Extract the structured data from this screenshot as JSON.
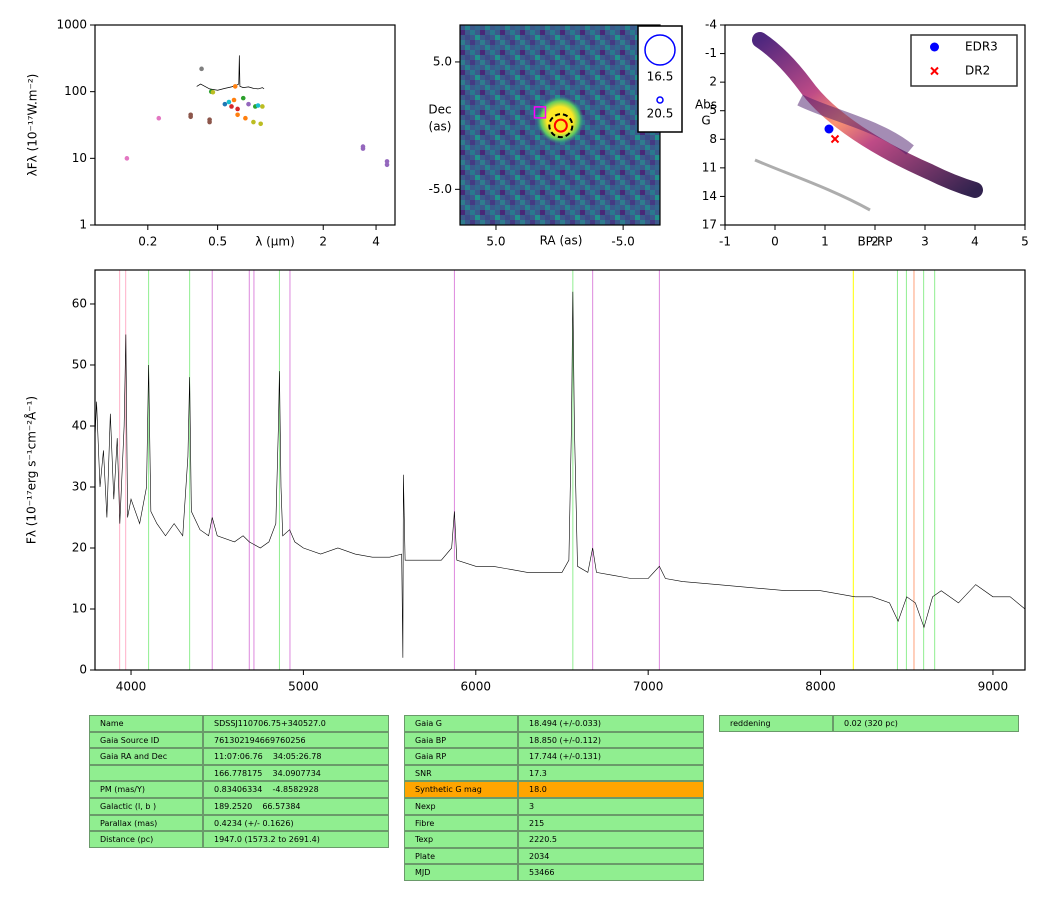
{
  "chart_data": [
    {
      "type": "scatter",
      "y_label": "λFλ (10⁻¹⁷W.m⁻²)",
      "x_label": "λ (μm)",
      "xscale": "log",
      "yscale": "log",
      "xlim": [
        0.1,
        5.13
      ],
      "ylim": [
        1,
        1000
      ],
      "xticks": [
        0.2,
        0.5,
        2,
        4
      ],
      "yticks": [
        1,
        10,
        100,
        1000
      ],
      "x": [
        0.152,
        0.231,
        0.351,
        0.351,
        0.405,
        0.45,
        0.45,
        0.46,
        0.47,
        0.55,
        0.58,
        0.6,
        0.62,
        0.63,
        0.65,
        0.65,
        0.7,
        0.72,
        0.75,
        0.8,
        0.82,
        0.85,
        0.88,
        0.9,
        3.37,
        3.37,
        4.62,
        4.62
      ],
      "values": [
        10,
        40,
        45,
        42,
        220,
        38,
        35,
        100,
        98,
        65,
        70,
        60,
        75,
        120,
        45,
        55,
        80,
        40,
        65,
        35,
        60,
        62,
        33,
        60,
        15,
        14,
        9,
        8
      ],
      "colors": [
        "#e377c2",
        "#e377c2",
        "#8c564b",
        "#8c564b",
        "#7f7f7f",
        "#8c564b",
        "#8c564b",
        "#2ca02c",
        "#bcbd22",
        "#1f77b4",
        "#17becf",
        "#d62728",
        "#ff7f0e",
        "#ff7f0e",
        "#ff7f0e",
        "#d62728",
        "#2ca02c",
        "#ff7f0e",
        "#9467bd",
        "#bcbd22",
        "#2ca02c",
        "#17becf",
        "#bcbd22",
        "#bcbd22",
        "#9467bd",
        "#9467bd",
        "#9467bd",
        "#9467bd"
      ],
      "spectrum": {
        "color": "#000000",
        "x": [
          0.38,
          0.4,
          0.45,
          0.5,
          0.55,
          0.6,
          0.64,
          0.66,
          0.665,
          0.67,
          0.7,
          0.75,
          0.8,
          0.85,
          0.9,
          0.92
        ],
        "values": [
          120,
          130,
          110,
          105,
          112,
          118,
          125,
          130,
          350,
          120,
          115,
          118,
          112,
          110,
          115,
          110
        ]
      }
    },
    {
      "type": "image",
      "x_label": "RA (as)",
      "y_label": [
        "Dec",
        "(as)"
      ],
      "xlim": [
        7.83,
        -7.9
      ],
      "ylim": [
        -7.8,
        7.9
      ],
      "xticks": [
        {
          "value": 5,
          "label": "5.0"
        },
        {
          "value": -5,
          "label": "-5.0"
        }
      ],
      "yticks": [
        {
          "value": 5,
          "label": "5.0"
        },
        {
          "value": -5,
          "label": "-5.0"
        }
      ],
      "markers": [
        {
          "shape": "square",
          "color": "#ff00ff",
          "x": 1.54,
          "y": 1.0
        },
        {
          "shape": "dashed-circle",
          "color": "#000000",
          "x": -0.1,
          "y": 0.0
        },
        {
          "shape": "circle",
          "color": "#ff0000",
          "x": -0.1,
          "y": 0.0
        }
      ],
      "legend_sizes": [
        16.5,
        20.5
      ],
      "legend_color": "#0000ff",
      "legend": "upper right outside"
    },
    {
      "type": "scatter",
      "x_label": "BP-RP",
      "y_label": [
        "Abs",
        "G"
      ],
      "xlim": [
        -1,
        5
      ],
      "ylim": [
        -4,
        17
      ],
      "y_inverted": true,
      "xticks": [
        -1,
        0,
        1,
        2,
        3,
        4,
        5
      ],
      "yticks": [
        -4,
        -1,
        2,
        5,
        8,
        11,
        14,
        17
      ],
      "legend": "upper right",
      "series": [
        {
          "name": "EDR3",
          "color": "#0000ff",
          "marker": "o",
          "x": [
            1.08
          ],
          "values": [
            6.92
          ]
        },
        {
          "name": "DR2",
          "color": "#ff0000",
          "marker": "x",
          "x": [
            1.2
          ],
          "values": [
            7.97
          ]
        }
      ]
    },
    {
      "type": "line",
      "y_label": "Fλ (10⁻¹⁷erg s⁻¹cm⁻²Å⁻¹)",
      "xlim": [
        3791,
        9186
      ],
      "ylim": [
        0,
        65.57
      ],
      "xticks": [
        4000,
        5000,
        6000,
        7000,
        8000,
        9000
      ],
      "yticks": [
        0,
        10,
        20,
        30,
        40,
        50,
        60
      ],
      "color": "#000000",
      "x": [
        3791,
        3800,
        3820,
        3840,
        3860,
        3880,
        3900,
        3920,
        3935,
        3960,
        3970,
        3980,
        4000,
        4050,
        4090,
        4102,
        4115,
        4150,
        4200,
        4250,
        4300,
        4330,
        4340,
        4350,
        4400,
        4450,
        4471,
        4500,
        4600,
        4650,
        4686,
        4750,
        4800,
        4840,
        4855,
        4861,
        4870,
        4880,
        4920,
        4950,
        5000,
        5100,
        5200,
        5300,
        5400,
        5500,
        5570,
        5577,
        5580,
        5590,
        5700,
        5800,
        5860,
        5876,
        5890,
        6000,
        6100,
        6200,
        6300,
        6400,
        6500,
        6540,
        6555,
        6563,
        6572,
        6590,
        6650,
        6678,
        6700,
        6800,
        6900,
        7000,
        7065,
        7100,
        7200,
        7400,
        7600,
        7800,
        8000,
        8200,
        8300,
        8400,
        8450,
        8500,
        8550,
        8600,
        8650,
        8700,
        8800,
        8900,
        9000,
        9100,
        9186
      ],
      "values": [
        38,
        44,
        30,
        36,
        25,
        42,
        28,
        38,
        24,
        40,
        55,
        25,
        28,
        24,
        30,
        50,
        26,
        24,
        22,
        24,
        22,
        35,
        48,
        26,
        23,
        22,
        25,
        22,
        21,
        22,
        21,
        20,
        21,
        24,
        40,
        49,
        30,
        22,
        23,
        21,
        20,
        19,
        20,
        19,
        18.5,
        18.5,
        19,
        2,
        32,
        18,
        18,
        18,
        20,
        26,
        18,
        17,
        17,
        16.5,
        16,
        16,
        16,
        18,
        40,
        62,
        40,
        17,
        16,
        20,
        16,
        15.5,
        15,
        15,
        17,
        15,
        14.5,
        14,
        13.5,
        13,
        13,
        12,
        12,
        11,
        8,
        12,
        11,
        7,
        12,
        13,
        11,
        14,
        12,
        12,
        10
      ],
      "lines": [
        {
          "x": 3934,
          "color": "#ffb0c8"
        },
        {
          "x": 3969,
          "color": "#ffb0c8"
        },
        {
          "x": 4102,
          "color": "#90ee90"
        },
        {
          "x": 4340,
          "color": "#90ee90"
        },
        {
          "x": 4471,
          "color": "#dd88dd"
        },
        {
          "x": 4686,
          "color": "#dd88dd"
        },
        {
          "x": 4713,
          "color": "#dd88dd"
        },
        {
          "x": 4861,
          "color": "#90ee90"
        },
        {
          "x": 4922,
          "color": "#dd88dd"
        },
        {
          "x": 5876,
          "color": "#dd88dd"
        },
        {
          "x": 6563,
          "color": "#90ee90"
        },
        {
          "x": 6678,
          "color": "#dd88dd"
        },
        {
          "x": 7065,
          "color": "#dd88dd"
        },
        {
          "x": 8190,
          "color": "#ffff00"
        },
        {
          "x": 8446,
          "color": "#90ee90"
        },
        {
          "x": 8498,
          "color": "#90ee90"
        },
        {
          "x": 8542,
          "color": "#ffa07a"
        },
        {
          "x": 8598,
          "color": "#90ee90"
        },
        {
          "x": 8662,
          "color": "#90ee90"
        }
      ]
    }
  ],
  "tables": [
    {
      "color": "#90ee90",
      "rows": [
        [
          "Name",
          "SDSSJ110706.75+340527.0"
        ],
        [
          "Gaia Source ID",
          "761302194669760256"
        ],
        [
          "Gaia RA and Dec",
          "11:07:06.76    34:05:26.78"
        ],
        [
          null,
          "166.778175    34.0907734"
        ],
        [
          "PM (mas/Y)",
          "0.83406334    -4.8582928"
        ],
        [
          "Galactic (l, b )",
          "189.2520    66.57384"
        ],
        [
          "Parallax (mas)",
          "0.4234 (+/- 0.1626)"
        ],
        [
          "Distance (pc)",
          "1947.0 (1573.2 to 2691.4)"
        ]
      ]
    },
    {
      "color": "#90ee90",
      "highlight": {
        "row": 4,
        "color": "#ffa500"
      },
      "rows": [
        [
          "Gaia G",
          "18.494 (+/-0.033)"
        ],
        [
          "Gaia BP",
          "18.850 (+/-0.112)"
        ],
        [
          "Gaia RP",
          "17.744 (+/-0.131)"
        ],
        [
          "SNR",
          "17.3"
        ],
        [
          "Synthetic G mag",
          "18.0"
        ],
        [
          "Nexp",
          "3"
        ],
        [
          "Fibre",
          "215"
        ],
        [
          "Texp",
          "2220.5"
        ],
        [
          "Plate",
          "2034"
        ],
        [
          "MJD",
          "53466"
        ]
      ]
    },
    {
      "color": "#90ee90",
      "rows": [
        [
          "reddening",
          "0.02 (320 pc)"
        ]
      ]
    }
  ]
}
